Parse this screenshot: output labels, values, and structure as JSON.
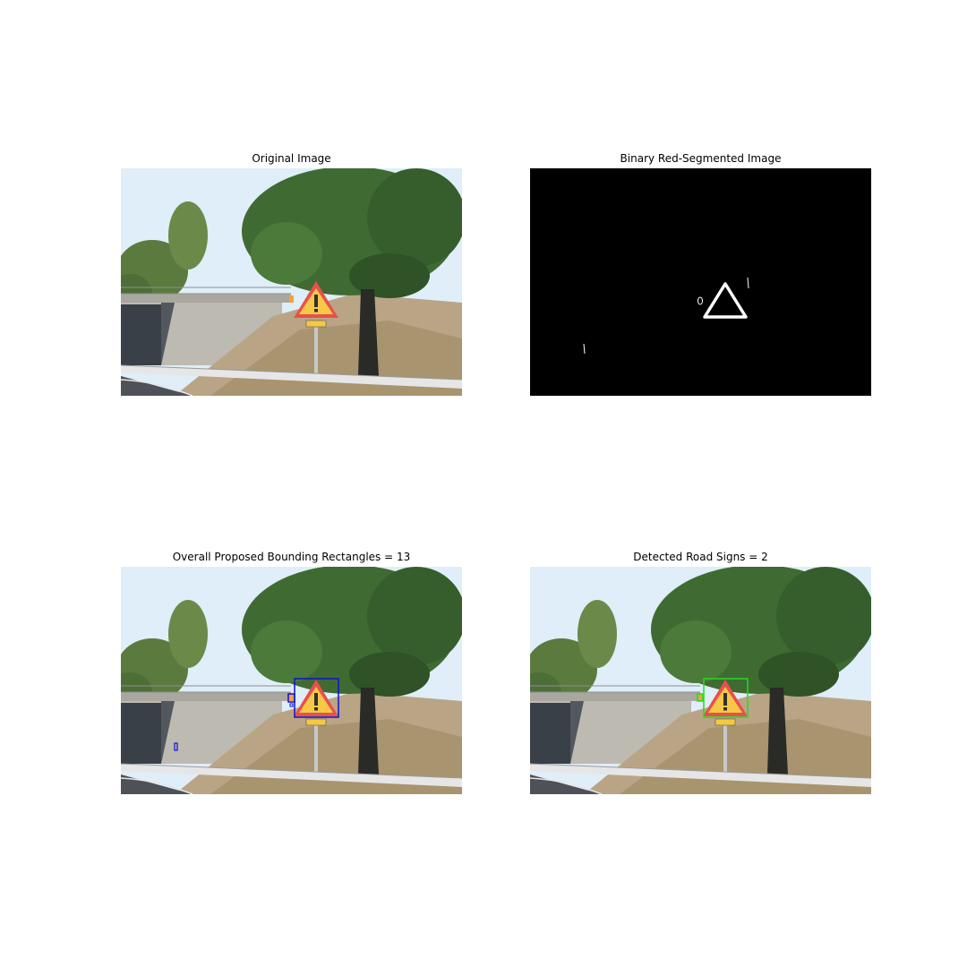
{
  "figure": {
    "panels": [
      {
        "id": "original",
        "title": "Original Image",
        "kind": "photo",
        "boxes": []
      },
      {
        "id": "binary",
        "title": "Binary Red-Segmented Image",
        "kind": "mask",
        "boxes": []
      },
      {
        "id": "proposals",
        "title": "Overall Proposed Bounding Rectangles = 13",
        "kind": "photo",
        "proposed_count": 13,
        "box_color": "#1010d0",
        "boxes": [
          "sign-box",
          "small-box-1",
          "small-box-2",
          "small-box-3"
        ]
      },
      {
        "id": "detections",
        "title": "Detected Road Signs = 2",
        "kind": "photo",
        "detected_count": 2,
        "box_color": "#22dd22",
        "boxes": [
          "sign-box",
          "small-box-1"
        ]
      }
    ],
    "colors": {
      "sky": "#dfeef8",
      "tree": "#3f6b33",
      "grass": "#b9a585",
      "bridge": "#bdbab2",
      "road": "#4f5158",
      "sign_fill": "#f7c748",
      "sign_border": "#e8504a",
      "mask_background": "#000000",
      "mask_foreground": "#ffffff"
    }
  }
}
